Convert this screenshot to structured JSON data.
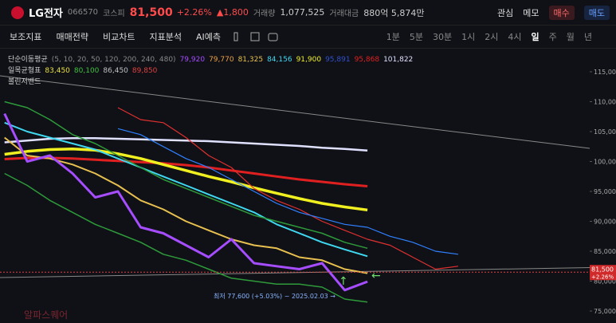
{
  "header": {
    "name": "LG전자",
    "code": "066570",
    "market": "코스피",
    "price": "81,500",
    "change_pct": "+2.26%",
    "change_abs": "▲1,800",
    "volume_label": "거래량",
    "volume": "1,077,525",
    "amount_label": "거래대금",
    "amount": "880억 5,874만",
    "buttons": [
      "관심",
      "메모",
      "매수",
      "매도"
    ]
  },
  "toolbar": {
    "tools": [
      "보조지표",
      "매매전략",
      "비교차트",
      "지표분석",
      "AI예측"
    ],
    "periods": [
      "1분",
      "5분",
      "30분",
      "1시",
      "2시",
      "4시",
      "일",
      "주",
      "월",
      "년"
    ]
  },
  "chart_data": {
    "type": "line",
    "legends": [
      {
        "title": "단순이동평균",
        "params": "(5, 10, 20, 50, 120, 200, 240, 480)",
        "items": [
          {
            "text": "79,920",
            "color": "#a64dff"
          },
          {
            "text": "79,770",
            "color": "#f0a040"
          },
          {
            "text": "81,325",
            "color": "#e8c050"
          },
          {
            "text": "84,156",
            "color": "#40d8f0"
          },
          {
            "text": "91,900",
            "color": "#f0f020"
          },
          {
            "text": "95,891",
            "color": "#3050d0"
          },
          {
            "text": "95,868",
            "color": "#e02020"
          },
          {
            "text": "101,822",
            "color": "#e0e0ff"
          }
        ]
      },
      {
        "title": "일목균형표",
        "params": "",
        "items": [
          {
            "text": "83,450",
            "color": "#e8e040"
          },
          {
            "text": "80,100",
            "color": "#40c040"
          },
          {
            "text": "86,450",
            "color": "#c0c0c0"
          },
          {
            "text": "89,850",
            "color": "#e04040"
          }
        ]
      },
      {
        "title": "볼린저밴드",
        "params": "",
        "items": []
      }
    ],
    "x": [
      0,
      5,
      10,
      15,
      20,
      25,
      30,
      35,
      40,
      45,
      50,
      55,
      60,
      65,
      70,
      75,
      80,
      85,
      90,
      95,
      100
    ],
    "xlim": [
      -1,
      129
    ],
    "ylim": [
      73400,
      119000
    ],
    "yticks": [
      {
        "value": 115000,
        "label": "115,000"
      },
      {
        "value": 110000,
        "label": "110,000"
      },
      {
        "value": 105000,
        "label": "105,000"
      },
      {
        "value": 100000,
        "label": "100,000"
      },
      {
        "value": 95000,
        "label": "95,000"
      },
      {
        "value": 90000,
        "label": "90,000"
      },
      {
        "value": 85000,
        "label": "85,000"
      },
      {
        "value": 80000,
        "label": "80,000"
      },
      {
        "value": 75000,
        "label": "75,000"
      }
    ],
    "series": [
      {
        "color": "#e02020",
        "width": 3,
        "values": [
          100400,
          100600,
          100600,
          100500,
          100300,
          100100,
          99900,
          99700,
          99400,
          99000,
          98500,
          98000,
          97500,
          97000,
          96600,
          96200,
          95868,
          null,
          null,
          null,
          null
        ]
      },
      {
        "color": "#e0e0ff",
        "width": 2.5,
        "values": [
          103200,
          103500,
          103800,
          103900,
          103900,
          103800,
          103700,
          103600,
          103500,
          103400,
          103200,
          103000,
          102800,
          102600,
          102300,
          102100,
          101822,
          null,
          null,
          null,
          null
        ]
      },
      {
        "color": "#f0f020",
        "width": 3.5,
        "values": [
          101200,
          101700,
          102000,
          102100,
          101900,
          101300,
          100500,
          99500,
          98500,
          97500,
          96600,
          95600,
          94700,
          93800,
          93000,
          92400,
          91900,
          null,
          null,
          null,
          null
        ]
      },
      {
        "color": "#40d8f0",
        "width": 2,
        "values": [
          106500,
          105000,
          104000,
          103000,
          102000,
          100500,
          99000,
          97500,
          96000,
          94500,
          93000,
          91500,
          89500,
          88000,
          86500,
          85300,
          84156,
          null,
          null,
          null,
          null
        ]
      },
      {
        "color": "#e8c050",
        "width": 2,
        "values": [
          104000,
          101000,
          100500,
          99500,
          98000,
          96000,
          93500,
          92000,
          90000,
          88500,
          87000,
          86000,
          85500,
          84000,
          83500,
          82000,
          81325,
          null,
          null,
          null,
          null
        ]
      },
      {
        "color": "#a64dff",
        "width": 3,
        "values": [
          108000,
          100000,
          101000,
          98000,
          94000,
          95000,
          89000,
          88000,
          86000,
          84000,
          87000,
          83000,
          82500,
          82000,
          83000,
          78500,
          79920,
          null,
          null,
          null,
          null
        ]
      },
      {
        "color": "#2e9a3a",
        "width": 1.5,
        "values": [
          110000,
          109000,
          107000,
          104500,
          103000,
          101000,
          99000,
          97000,
          95500,
          94000,
          92500,
          91000,
          90000,
          89000,
          88000,
          86500,
          85500,
          null,
          null,
          null,
          null
        ]
      },
      {
        "color": "#2e9a3a",
        "width": 1.5,
        "values": [
          98000,
          96000,
          93500,
          91500,
          89500,
          88000,
          86500,
          84500,
          83500,
          82000,
          80500,
          80000,
          79500,
          79500,
          79000,
          77000,
          76500,
          null,
          null,
          null,
          null
        ]
      },
      {
        "color": "#e03030",
        "width": 1.2,
        "values": [
          null,
          null,
          null,
          null,
          null,
          109000,
          107000,
          106500,
          104000,
          101000,
          99000,
          95500,
          93500,
          92000,
          90000,
          88500,
          87000,
          86000,
          84000,
          82000,
          82500
        ]
      },
      {
        "color": "#3080ff",
        "width": 1.2,
        "values": [
          null,
          null,
          null,
          null,
          null,
          105500,
          104500,
          102500,
          100500,
          99000,
          97000,
          95000,
          93000,
          91500,
          90500,
          89500,
          89000,
          87500,
          86500,
          85000,
          84500
        ]
      }
    ],
    "last_price": {
      "value": 81500,
      "label": "81,500"
    },
    "last_change": "+2.26%",
    "annotation": "최저 77,600 (+5.03%) ~ 2025.02.03 →",
    "watermark": "알파스퀘어"
  }
}
